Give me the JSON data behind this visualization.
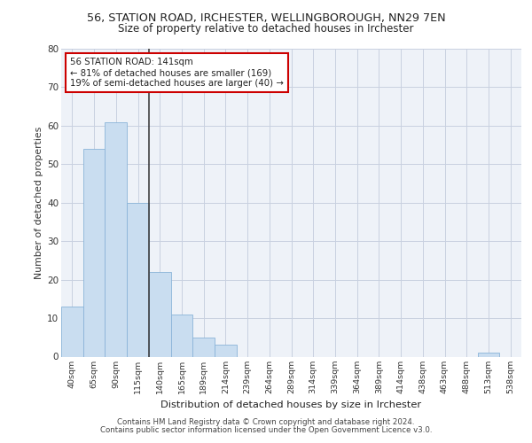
{
  "title1": "56, STATION ROAD, IRCHESTER, WELLINGBOROUGH, NN29 7EN",
  "title2": "Size of property relative to detached houses in Irchester",
  "xlabel": "Distribution of detached houses by size in Irchester",
  "ylabel": "Number of detached properties",
  "bar_labels": [
    "40sqm",
    "65sqm",
    "90sqm",
    "115sqm",
    "140sqm",
    "165sqm",
    "189sqm",
    "214sqm",
    "239sqm",
    "264sqm",
    "289sqm",
    "314sqm",
    "339sqm",
    "364sqm",
    "389sqm",
    "414sqm",
    "438sqm",
    "463sqm",
    "488sqm",
    "513sqm",
    "538sqm"
  ],
  "bar_values": [
    13,
    54,
    61,
    40,
    22,
    11,
    5,
    3,
    0,
    0,
    0,
    0,
    0,
    0,
    0,
    0,
    0,
    0,
    0,
    1,
    0
  ],
  "bar_color": "#c9ddf0",
  "bar_edge_color": "#8ab4d8",
  "vline_color": "#333333",
  "annotation_title": "56 STATION ROAD: 141sqm",
  "annotation_line1": "← 81% of detached houses are smaller (169)",
  "annotation_line2": "19% of semi-detached houses are larger (40) →",
  "annotation_box_color": "#ffffff",
  "annotation_box_edge": "#cc0000",
  "ylim": [
    0,
    80
  ],
  "yticks": [
    0,
    10,
    20,
    30,
    40,
    50,
    60,
    70,
    80
  ],
  "grid_color": "#c8d0e0",
  "bg_color": "#eef2f8",
  "footnote1": "Contains HM Land Registry data © Crown copyright and database right 2024.",
  "footnote2": "Contains public sector information licensed under the Open Government Licence v3.0."
}
